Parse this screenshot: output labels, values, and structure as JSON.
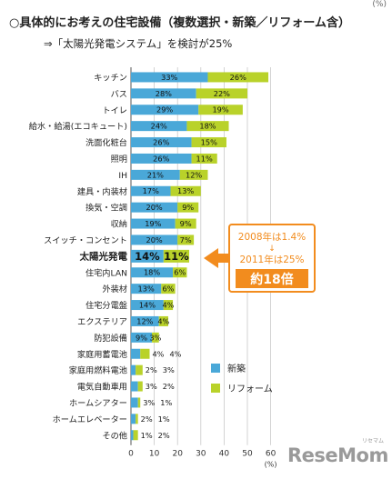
{
  "header": {
    "title": "○具体的にお考えの住宅設備（複数選択・新築／リフォーム含）",
    "subtitle": "⇒「太陽光発電システム」を検討が25%",
    "corner_note": "(%)"
  },
  "callout": {
    "line1": "2008年は1.4%",
    "arrow": "↓",
    "line2": "2011年は25%",
    "badge": "約18倍"
  },
  "brand": {
    "name": "ReseMom",
    "ruby": "リセマム"
  },
  "colors": {
    "new": "#4aa8d8",
    "reform": "#b9d22a",
    "accent": "#f28c1e"
  },
  "chart_data": {
    "type": "bar",
    "orientation": "horizontal",
    "stacked": true,
    "categories": [
      "キッチン",
      "バス",
      "トイレ",
      "給水・給湯(エコキュート)",
      "洗面化粧台",
      "照明",
      "IH",
      "建具・内装材",
      "換気・空調",
      "収納",
      "スイッチ・コンセント",
      "太陽光発電",
      "住宅内LAN",
      "外装材",
      "住宅分電盤",
      "エクステリア",
      "防犯設備",
      "家庭用蓄電池",
      "家庭用燃料電池",
      "電気自動車用",
      "ホームシアター",
      "ホームエレベーター",
      "その他"
    ],
    "series": [
      {
        "name": "新築",
        "color": "#4aa8d8",
        "values": [
          33,
          28,
          29,
          24,
          26,
          26,
          21,
          17,
          20,
          19,
          20,
          14,
          18,
          13,
          14,
          12,
          9,
          4,
          2,
          3,
          3,
          2,
          1
        ],
        "labels": [
          "33%",
          "28%",
          "29%",
          "24%",
          "26%",
          "26%",
          "21%",
          "17%",
          "20%",
          "19%",
          "20%",
          "14%",
          "18%",
          "13%",
          "14%",
          "12%",
          "9%",
          "4%",
          "2%",
          "3%",
          "3%",
          "2%",
          "1%"
        ]
      },
      {
        "name": "リフォーム",
        "color": "#b9d22a",
        "values": [
          26,
          22,
          19,
          18,
          15,
          11,
          12,
          13,
          9,
          9,
          7,
          11,
          6,
          6,
          4,
          4,
          3,
          4,
          3,
          2,
          1,
          1,
          2
        ],
        "labels": [
          "26%",
          "22%",
          "19%",
          "18%",
          "15%",
          "11%",
          "12%",
          "13%",
          "9%",
          "9%",
          "7%",
          "11%",
          "6%",
          "6%",
          "4%",
          "4%",
          "3%",
          "4%",
          "3%",
          "2%",
          "1%",
          "1%",
          "2%"
        ]
      }
    ],
    "highlight_category": "太陽光発電",
    "xlim": [
      0,
      60
    ],
    "xticks": [
      0,
      10,
      20,
      30,
      40,
      50,
      60
    ],
    "xunit": "(%)",
    "legend_position": "bottom-right",
    "grid": true
  }
}
